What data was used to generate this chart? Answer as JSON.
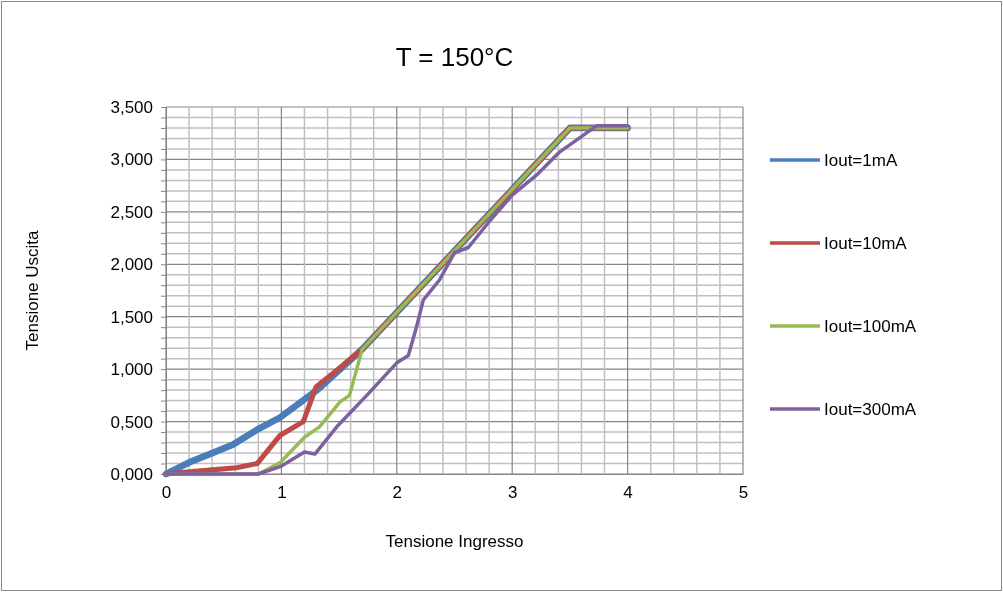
{
  "chart_data": {
    "type": "line",
    "title": "T = 150°C",
    "xlabel": "Tensione Ingresso",
    "ylabel": "Tensione Uscita",
    "xlim": [
      0,
      5
    ],
    "ylim": [
      0,
      3.5
    ],
    "xticks": [
      0,
      {
        "value": 0.2,
        "label": null
      },
      {
        "value": 0.4,
        "label": null
      },
      {
        "value": 0.6,
        "label": null
      },
      {
        "value": 0.8,
        "label": null
      },
      1,
      {
        "value": 1.2,
        "label": null
      },
      {
        "value": 1.4,
        "label": null
      },
      {
        "value": 1.6,
        "label": null
      },
      {
        "value": 1.8,
        "label": null
      },
      2,
      {
        "value": 2.2,
        "label": null
      },
      {
        "value": 2.4,
        "label": null
      },
      {
        "value": 2.6,
        "label": null
      },
      {
        "value": 2.8,
        "label": null
      },
      3,
      {
        "value": 3.2,
        "label": null
      },
      {
        "value": 3.4,
        "label": null
      },
      {
        "value": 3.6,
        "label": null
      },
      {
        "value": 3.8,
        "label": null
      },
      4,
      {
        "value": 4.2,
        "label": null
      },
      {
        "value": 4.4,
        "label": null
      },
      {
        "value": 4.6,
        "label": null
      },
      {
        "value": 4.8,
        "label": null
      },
      5
    ],
    "yticks": [
      {
        "value": 0,
        "label": "0,000"
      },
      {
        "value": 0.1,
        "label": null
      },
      {
        "value": 0.2,
        "label": null
      },
      {
        "value": 0.3,
        "label": null
      },
      {
        "value": 0.4,
        "label": null
      },
      {
        "value": 0.5,
        "label": "0,500"
      },
      {
        "value": 0.6,
        "label": null
      },
      {
        "value": 0.7,
        "label": null
      },
      {
        "value": 0.8,
        "label": null
      },
      {
        "value": 0.9,
        "label": null
      },
      {
        "value": 1,
        "label": "1,000"
      },
      {
        "value": 1.1,
        "label": null
      },
      {
        "value": 1.2,
        "label": null
      },
      {
        "value": 1.3,
        "label": null
      },
      {
        "value": 1.4,
        "label": null
      },
      {
        "value": 1.5,
        "label": "1,500"
      },
      {
        "value": 1.6,
        "label": null
      },
      {
        "value": 1.7,
        "label": null
      },
      {
        "value": 1.8,
        "label": null
      },
      {
        "value": 1.9,
        "label": null
      },
      {
        "value": 2,
        "label": "2,000"
      },
      {
        "value": 2.1,
        "label": null
      },
      {
        "value": 2.2,
        "label": null
      },
      {
        "value": 2.3,
        "label": null
      },
      {
        "value": 2.4,
        "label": null
      },
      {
        "value": 2.5,
        "label": "2,500"
      },
      {
        "value": 2.6,
        "label": null
      },
      {
        "value": 2.7,
        "label": null
      },
      {
        "value": 2.8,
        "label": null
      },
      {
        "value": 2.9,
        "label": null
      },
      {
        "value": 3,
        "label": "3,000"
      },
      {
        "value": 3.1,
        "label": null
      },
      {
        "value": 3.2,
        "label": null
      },
      {
        "value": 3.3,
        "label": null
      },
      {
        "value": 3.4,
        "label": null
      },
      {
        "value": 3.5,
        "label": "3,500"
      }
    ],
    "grid": true,
    "legend": "right",
    "marker": "none",
    "line_style": "solid",
    "series": [
      {
        "name": "Iout=1mA",
        "color": "#4a7ebb",
        "x": [
          0,
          0.2,
          0.4,
          0.58,
          0.8,
          0.99,
          1.32,
          1.7,
          3.5,
          4
        ],
        "values": [
          0,
          0.11,
          0.2,
          0.28,
          0.43,
          0.54,
          0.81,
          1.19,
          3.3,
          3.3
        ]
      },
      {
        "name": "Iout=10mA",
        "color": "#be4b48",
        "x": [
          0,
          0.3,
          0.61,
          0.79,
          0.99,
          1.19,
          1.3,
          1.48,
          1.7,
          3.5,
          4
        ],
        "values": [
          0,
          0.03,
          0.06,
          0.1,
          0.37,
          0.5,
          0.83,
          0.99,
          1.19,
          3.3,
          3.3
        ]
      },
      {
        "name": "Iout=100mA",
        "color": "#98b954",
        "x": [
          0,
          0.8,
          0.99,
          1.2,
          1.33,
          1.51,
          1.59,
          1.7,
          3.5,
          4
        ],
        "values": [
          0,
          0,
          0.11,
          0.35,
          0.45,
          0.69,
          0.75,
          1.19,
          3.3,
          3.3
        ]
      },
      {
        "name": "Iout=300mA",
        "color": "#7d60a0",
        "x": [
          0,
          0.8,
          0.99,
          1.2,
          1.29,
          1.48,
          1.74,
          2.0,
          2.1,
          2.17,
          2.23,
          2.37,
          2.5,
          2.62,
          2.81,
          3.0,
          3.21,
          3.41,
          3.59,
          3.73,
          4
        ],
        "values": [
          0,
          0,
          0.07,
          0.21,
          0.19,
          0.45,
          0.75,
          1.06,
          1.13,
          1.4,
          1.66,
          1.85,
          2.11,
          2.16,
          2.42,
          2.66,
          2.85,
          3.07,
          3.21,
          3.32,
          3.32
        ]
      }
    ]
  }
}
